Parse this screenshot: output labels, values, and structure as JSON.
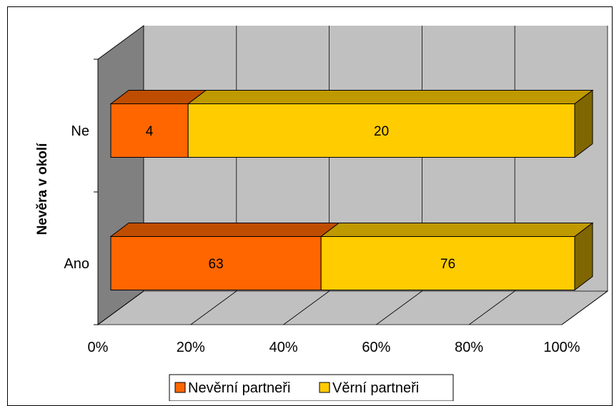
{
  "chart_data": {
    "type": "bar",
    "orientation": "horizontal",
    "stacking": "percent",
    "style": "3d",
    "categories": [
      "Ano",
      "Ne"
    ],
    "series": [
      {
        "name": "Nevěrní partneři",
        "values": [
          63,
          4
        ],
        "color": "#FF6600"
      },
      {
        "name": "Věrní partneři",
        "values": [
          76,
          20
        ],
        "color": "#FFCC00"
      }
    ],
    "ylabel": "Nevěra v okolí",
    "xlabel": "",
    "xlim": [
      0,
      100
    ],
    "xticks": [
      "0%",
      "20%",
      "40%",
      "60%",
      "80%",
      "100%"
    ],
    "grid": true,
    "legend": {
      "position": "bottom"
    }
  }
}
